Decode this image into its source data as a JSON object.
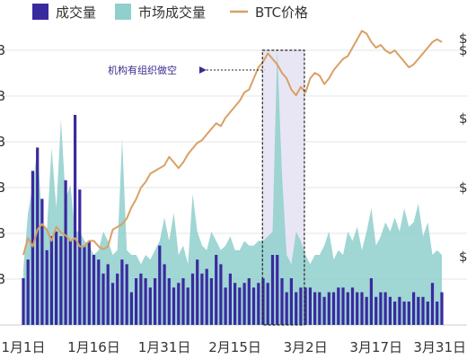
{
  "chart_data": {
    "type": "combo",
    "title": "",
    "colors": {
      "volume": "#3a2aa0",
      "market_volume": "#8fcfcc",
      "btc_price": "#d9a066",
      "highlight_fill": "#e8e6f4",
      "highlight_border": "#222222",
      "grid": "#e6e6e6",
      "annotation": "#3a2d8f"
    },
    "legend": {
      "position": "top-left",
      "items": [
        {
          "key": "volume",
          "label": "成交量"
        },
        {
          "key": "market_volume",
          "label": "市场成交量"
        },
        {
          "key": "btc_price",
          "label": "BTC价格"
        }
      ]
    },
    "x_ticks": [
      {
        "day": 1,
        "label": "1月1日"
      },
      {
        "day": 16,
        "label": "1月16日"
      },
      {
        "day": 31,
        "label": "1月31日"
      },
      {
        "day": 46,
        "label": "2月15日"
      },
      {
        "day": 61,
        "label": "3月2日"
      },
      {
        "day": 76,
        "label": "3月17日"
      },
      {
        "day": 90,
        "label": "3月31日"
      }
    ],
    "left_tick_labels": [
      "B",
      "B",
      "B",
      "B",
      "B",
      "B"
    ],
    "right_tick_labels": [
      "$",
      "$",
      "$",
      "$",
      "$"
    ],
    "grid": true,
    "highlight": {
      "start_day": 53,
      "end_day": 60
    },
    "annotation": {
      "text": "机构有组织做空",
      "target_day": 53
    },
    "volume_scale": [
      0,
      6
    ],
    "price_scale": [
      0,
      100
    ],
    "volume": [
      1.0,
      1.4,
      3.3,
      3.8,
      2.7,
      1.6,
      1.9,
      2.0,
      1.9,
      3.1,
      1.8,
      4.5,
      2.9,
      1.7,
      1.8,
      1.5,
      1.4,
      1.1,
      1.3,
      0.9,
      1.1,
      1.4,
      1.3,
      0.7,
      1.0,
      1.1,
      1.0,
      0.8,
      1.0,
      1.7,
      1.3,
      1.0,
      0.8,
      0.9,
      1.0,
      0.8,
      1.1,
      1.4,
      1.1,
      1.2,
      1.0,
      1.5,
      1.3,
      0.8,
      1.1,
      0.9,
      0.8,
      0.9,
      1.0,
      0.8,
      0.9,
      1.0,
      0.9,
      1.5,
      1.5,
      1.0,
      0.7,
      1.0,
      0.7,
      0.8,
      0.8,
      0.8,
      0.7,
      0.7,
      0.6,
      0.7,
      0.7,
      0.8,
      0.8,
      0.7,
      0.8,
      0.7,
      0.7,
      0.6,
      1.0,
      0.6,
      0.7,
      0.7,
      0.6,
      0.5,
      0.6,
      0.5,
      0.5,
      0.7,
      0.6,
      0.6,
      0.5,
      0.9,
      0.5,
      0.7
    ],
    "market_volume": [
      1.2,
      2.4,
      3.0,
      3.8,
      2.2,
      2.0,
      3.8,
      2.5,
      4.4,
      2.7,
      3.0,
      2.0,
      2.0,
      1.8,
      1.7,
      1.5,
      1.6,
      2.0,
      1.8,
      1.5,
      1.6,
      4.0,
      1.6,
      1.5,
      1.5,
      1.3,
      1.5,
      1.4,
      1.6,
      1.8,
      2.3,
      1.8,
      2.4,
      1.5,
      1.7,
      1.3,
      2.8,
      2.0,
      1.7,
      1.6,
      2.0,
      1.8,
      1.6,
      1.7,
      1.9,
      1.6,
      1.6,
      1.8,
      1.7,
      1.7,
      1.8,
      1.8,
      1.9,
      2.0,
      5.9,
      3.2,
      1.5,
      1.3,
      2.0,
      1.8,
      1.5,
      1.3,
      1.5,
      1.5,
      1.7,
      2.0,
      1.4,
      1.6,
      1.5,
      2.0,
      1.8,
      2.1,
      1.6,
      2.0,
      2.5,
      1.7,
      1.9,
      2.2,
      2.0,
      2.3,
      2.0,
      2.5,
      2.1,
      2.2,
      2.6,
      1.9,
      2.2,
      1.5,
      1.6,
      1.5
    ],
    "btc_price": [
      25,
      31,
      28,
      34,
      36,
      34,
      30,
      35,
      33,
      32,
      30,
      31,
      28,
      28,
      30,
      30,
      28,
      27,
      28,
      34,
      35,
      36,
      38,
      42,
      45,
      49,
      51,
      54,
      55,
      56,
      57,
      60,
      58,
      56,
      58,
      61,
      63,
      65,
      66,
      68,
      70,
      72,
      71,
      74,
      76,
      78,
      80,
      83,
      84,
      88,
      92,
      94,
      97,
      95,
      93,
      90,
      88,
      84,
      82,
      85,
      83,
      88,
      90,
      89,
      86,
      88,
      91,
      93,
      95,
      96,
      99,
      102,
      105,
      104,
      101,
      99,
      100,
      98,
      97,
      98,
      96,
      94,
      92,
      93,
      95,
      97,
      99,
      101,
      102,
      101
    ]
  }
}
